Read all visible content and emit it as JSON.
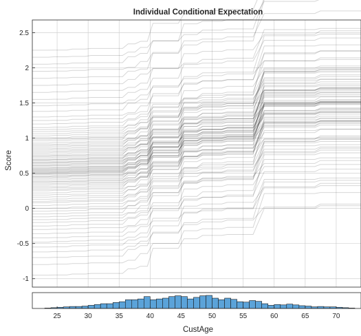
{
  "chart_data": [
    {
      "type": "line",
      "title": "Individual Conditional Expectation",
      "xlabel": "",
      "ylabel": "Score",
      "xlim": [
        21,
        74
      ],
      "ylim": [
        -1.12,
        2.68
      ],
      "y_ticks": [
        2.5,
        2,
        1.5,
        1,
        0.5,
        0,
        -0.5,
        -1
      ],
      "y_tick_labels": [
        "2.5",
        "2",
        "1.5",
        "1",
        "0.5",
        "0",
        "-0.5",
        "-1"
      ],
      "x_grid": [
        25,
        30,
        35,
        40,
        45,
        50,
        55,
        60,
        65,
        70
      ],
      "grid": true,
      "line_color": "#000000",
      "step_ages": [
        24,
        27,
        30,
        36,
        38,
        40,
        45,
        48,
        52,
        57.5,
        67
      ],
      "mean_step_deltas": [
        0.005,
        0.01,
        0.01,
        0.06,
        0.06,
        0.16,
        0.15,
        0.04,
        0.02,
        0.37,
        0.03
      ],
      "base_scores": [
        -0.95,
        -0.8,
        -0.7,
        -0.62,
        -0.55,
        -0.48,
        -0.42,
        -0.36,
        -0.3,
        -0.25,
        -0.2,
        -0.16,
        -0.12,
        -0.08,
        -0.04,
        0.0,
        0.04,
        0.08,
        0.1,
        0.13,
        0.16,
        0.19,
        0.22,
        0.25,
        0.27,
        0.29,
        0.31,
        0.33,
        0.35,
        0.37,
        0.38,
        0.4,
        0.42,
        0.44,
        0.45,
        0.46,
        0.48,
        0.49,
        0.5,
        0.51,
        0.52,
        0.53,
        0.54,
        0.55,
        0.56,
        0.57,
        0.58,
        0.6,
        0.61,
        0.62,
        0.64,
        0.65,
        0.66,
        0.68,
        0.69,
        0.7,
        0.72,
        0.74,
        0.75,
        0.77,
        0.79,
        0.81,
        0.83,
        0.85,
        0.87,
        0.89,
        0.91,
        0.93,
        0.96,
        0.98,
        1.0,
        1.03,
        1.06,
        1.09,
        1.12,
        1.15,
        1.2,
        1.25,
        1.3,
        1.38,
        1.46,
        1.55,
        1.65,
        1.75,
        1.85,
        1.95,
        2.05,
        2.15,
        2.25
      ],
      "step_scale": [
        0.5,
        1.4,
        0.8,
        1.1,
        0.6,
        1.6,
        0.9,
        1.2,
        0.7,
        1.0,
        1.3
      ]
    },
    {
      "type": "bar",
      "xlabel": "CustAge",
      "ylabel": "",
      "xlim": [
        21,
        74
      ],
      "x_ticks": [
        25,
        30,
        35,
        40,
        45,
        50,
        55,
        60,
        65,
        70
      ],
      "x_tick_labels": [
        "25",
        "30",
        "35",
        "40",
        "45",
        "50",
        "55",
        "60",
        "65",
        "70"
      ],
      "bin_width": 1,
      "bin_starts": [
        22,
        23,
        24,
        25,
        26,
        27,
        28,
        29,
        30,
        31,
        32,
        33,
        34,
        35,
        36,
        37,
        38,
        39,
        40,
        41,
        42,
        43,
        44,
        45,
        46,
        47,
        48,
        49,
        50,
        51,
        52,
        53,
        54,
        55,
        56,
        57,
        58,
        59,
        60,
        61,
        62,
        63,
        64,
        65,
        66,
        67,
        68,
        69,
        70,
        71,
        72,
        73
      ],
      "counts": [
        0,
        1,
        2,
        3,
        4,
        5,
        5,
        6,
        8,
        10,
        12,
        12,
        15,
        17,
        22,
        22,
        24,
        30,
        22,
        24,
        26,
        30,
        32,
        30,
        24,
        28,
        32,
        33,
        26,
        22,
        26,
        23,
        17,
        16,
        20,
        18,
        12,
        8,
        10,
        9,
        11,
        9,
        7,
        6,
        4,
        5,
        4,
        4,
        3,
        2,
        1,
        0
      ],
      "bar_color": "#5ba3d9"
    }
  ]
}
